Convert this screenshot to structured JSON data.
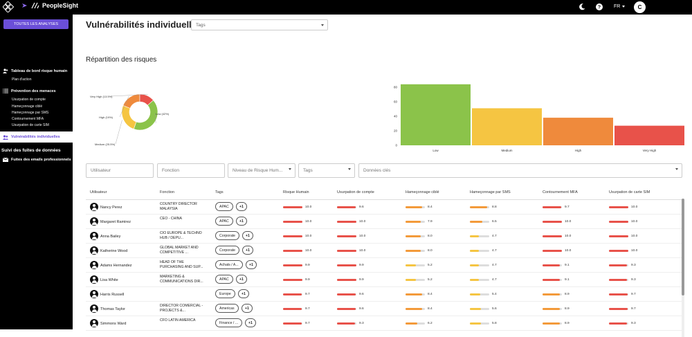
{
  "brand": {
    "name": "PeopleSight"
  },
  "header": {
    "lang": "FR",
    "avatar_initial": "C"
  },
  "sidebar": {
    "all_analyses": "TOUTES LES ANALYSES",
    "dashboard": "Tableau de bord risque humain",
    "action_plan": "Plan d'action",
    "threat_prevention": "Prévention des menaces",
    "sub_items": [
      "Usurpation de compte",
      "Hameçonnage ciblé",
      "Hameçonnage par SMS",
      "Contournement MFA",
      "Usurpation de carte SIM"
    ],
    "active_item": "Vulnérabilités individuelles",
    "leaks_heading": "Suivi des fuites de données",
    "leaks_item": "Fuites des emails professionnels"
  },
  "main": {
    "title": "Vulnérabilités individuelles",
    "tags_placeholder": "Tags",
    "risk_section": "Répartition des risques"
  },
  "chart_data": [
    {
      "type": "pie",
      "donut": true,
      "categories": [
        "Low",
        "Medium",
        "High",
        "Very High"
      ],
      "values": [
        42,
        25.5,
        19,
        13.5
      ],
      "labels": [
        "Low (42%)",
        "Medium (25.5%)",
        "High (19%)",
        "Very High (13.5%)"
      ],
      "colors": [
        "#8bc34a",
        "#f5c542",
        "#ef8a3c",
        "#e8524a"
      ]
    },
    {
      "type": "bar",
      "categories": [
        "Low",
        "Medium",
        "High",
        "Very High"
      ],
      "values": [
        84,
        51,
        38,
        27
      ],
      "ylim": [
        0,
        80
      ],
      "yticks": [
        0,
        20,
        40,
        60,
        80
      ],
      "colors": [
        "#8bc34a",
        "#f5c542",
        "#ef8a3c",
        "#e8524a"
      ]
    }
  ],
  "filters": {
    "user": "Utilisateur",
    "function": "Fonction",
    "risk_level": "Niveau de Risque Hum...",
    "tags": "Tags",
    "key_data": "Données clés"
  },
  "table": {
    "headers": [
      "Utilisateur",
      "Fonction",
      "Tags",
      "Risque Humain",
      "Usurpation de compte",
      "Hameçonnage ciblé",
      "Hameçonnage par SMS",
      "Contournement MFA",
      "Usurpation de carte SIM"
    ],
    "rows": [
      {
        "name": "Nancy Perez",
        "func": "COUNTRY DIRECTOR MALAYSIA",
        "tag": "APAC",
        "plus": "+1",
        "scores": [
          "10.0",
          "9.6",
          "8.4",
          "8.8",
          "9.7",
          "10.0"
        ]
      },
      {
        "name": "Margaret Ramirez",
        "func": "CEO - CHINA",
        "tag": "APAC",
        "plus": "+1",
        "scores": [
          "10.0",
          "10.0",
          "7.9",
          "6.5",
          "10.0",
          "10.0"
        ]
      },
      {
        "name": "Anna Bailey",
        "func": "CIO EUROPE & TECHNO HUB / DEPU...",
        "tag": "Corporate",
        "plus": "+1",
        "scores": [
          "10.0",
          "10.0",
          "8.0",
          "4.7",
          "10.0",
          "10.0"
        ]
      },
      {
        "name": "Katherine Wood",
        "func": "GLOBAL MARKET AND COMPETITIVE ...",
        "tag": "Corporate",
        "plus": "+1",
        "scores": [
          "10.0",
          "10.0",
          "8.0",
          "4.7",
          "10.0",
          "10.0"
        ]
      },
      {
        "name": "Adams Hernandez",
        "func": "HEAD OF THE PURCHASING AND SUP...",
        "tag": "Achats / A...",
        "plus": "+1",
        "scores": [
          "9.9",
          "9.9",
          "5.2",
          "4.7",
          "9.1",
          "9.3"
        ]
      },
      {
        "name": "Lisa White",
        "func": "MARKETING & COMMUNICATIONS DIR...",
        "tag": "APAC",
        "plus": "+1",
        "scores": [
          "9.9",
          "9.9",
          "5.2",
          "4.7",
          "9.1",
          "9.3"
        ]
      },
      {
        "name": "Harris Russell",
        "func": "",
        "tag": "Europe",
        "plus": "+1",
        "scores": [
          "9.7",
          "9.6",
          "8.4",
          "5.4",
          "8.9",
          "9.7"
        ]
      },
      {
        "name": "Thomas Taylor",
        "func": "DIRECTOR COMERCIAL - PROJECTS &...",
        "tag": "Americas",
        "plus": "+1",
        "scores": [
          "9.7",
          "9.6",
          "8.4",
          "5.6",
          "8.9",
          "9.7"
        ]
      },
      {
        "name": "Simmons Ward",
        "func": "CFO LATIN AMERICA",
        "tag": "Finance / ...",
        "plus": "+1",
        "scores": [
          "9.7",
          "9.3",
          "6.2",
          "5.8",
          "8.9",
          "9.3"
        ]
      }
    ]
  },
  "colors": {
    "sidebar_bg": "#000000",
    "accent": "#6b4fd8",
    "high_risk": "#e8524a",
    "medium_risk": "#f39a3a",
    "low_risk": "#f5c542"
  }
}
